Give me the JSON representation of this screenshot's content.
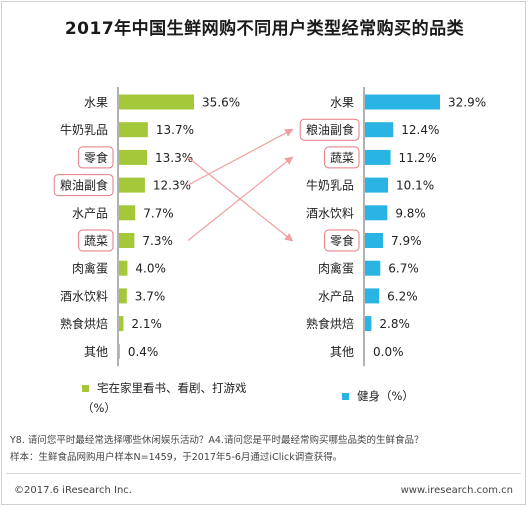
{
  "title": "2017年中国生鲜网购不同用户类型经常购买的品类",
  "chart_data": [
    {
      "type": "bar",
      "orientation": "horizontal",
      "series_name": "宅在家里看书、看剧、打游戏（%）",
      "color": "#a5c83a",
      "categories": [
        "水果",
        "牛奶乳品",
        "零食",
        "粮油副食",
        "水产品",
        "蔬菜",
        "肉禽蛋",
        "酒水饮料",
        "熟食烘焙",
        "其他"
      ],
      "values": [
        35.6,
        13.7,
        13.3,
        12.3,
        7.7,
        7.3,
        4.0,
        3.7,
        2.1,
        0.4
      ],
      "value_labels": [
        "35.6%",
        "13.7%",
        "13.3%",
        "12.3%",
        "7.7%",
        "7.3%",
        "4.0%",
        "3.7%",
        "2.1%",
        "0.4%"
      ],
      "highlighted": [
        "零食",
        "粮油副食",
        "蔬菜"
      ]
    },
    {
      "type": "bar",
      "orientation": "horizontal",
      "series_name": "健身（%）",
      "color": "#2ab4e4",
      "categories": [
        "水果",
        "粮油副食",
        "蔬菜",
        "牛奶乳品",
        "酒水饮料",
        "零食",
        "肉禽蛋",
        "水产品",
        "熟食烘焙",
        "其他"
      ],
      "values": [
        32.9,
        12.4,
        11.2,
        10.1,
        9.8,
        7.9,
        6.7,
        6.2,
        2.8,
        0.0
      ],
      "value_labels": [
        "32.9%",
        "12.4%",
        "11.2%",
        "10.1%",
        "9.8%",
        "7.9%",
        "6.7%",
        "6.2%",
        "2.8%",
        "0.0%"
      ],
      "highlighted": [
        "粮油副食",
        "蔬菜",
        "零食"
      ]
    }
  ],
  "connectors": [
    {
      "from": "零食",
      "to": "零食"
    },
    {
      "from": "粮油副食",
      "to": "粮油副食"
    },
    {
      "from": "蔬菜",
      "to": "蔬菜"
    }
  ],
  "legend": {
    "left_label": "宅在家里看书、看剧、打游戏（%）",
    "right_label": "健身（%）"
  },
  "notes": {
    "line1": "Y8. 请问您平时最经常选择哪些休闲娱乐活动？A4.请问您是平时最经常购买哪些品类的生鲜食品？",
    "line2": "样本：生鲜食品网购用户样本N=1459，于2017年5-6月通过iClick调查获得。"
  },
  "footer": {
    "copyright": "©2017.6 iResearch Inc.",
    "website": "www.iresearch.com.cn"
  },
  "colors": {
    "highlight_border": "#e07a80",
    "arrow": "#f0a0a0",
    "axis": "#666666"
  }
}
